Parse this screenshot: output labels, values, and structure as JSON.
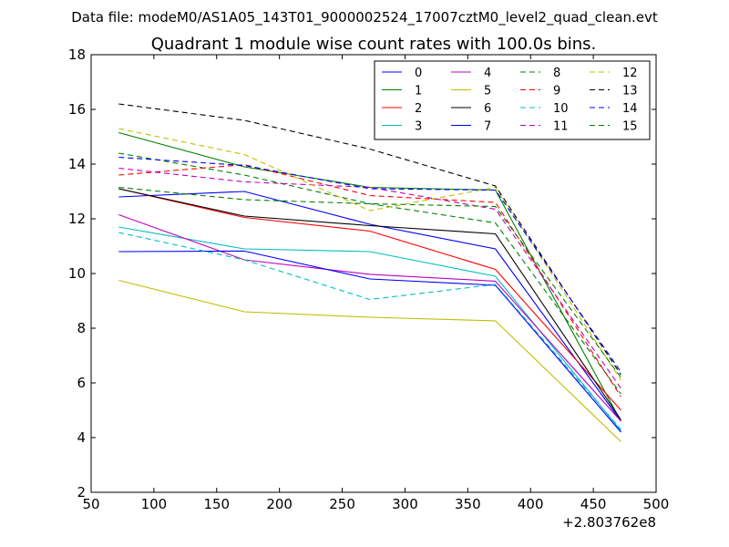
{
  "chart_data": {
    "type": "line",
    "suptitle": "Data file: modeM0/AS1A05_143T01_9000002524_17007cztM0_level2_quad_clean.evt",
    "title": "Quadrant 1 module wise count rates with 100.0s bins.",
    "xlabel": "",
    "ylabel": "",
    "x_offset_label": "+2.803762e8",
    "xlim": [
      50,
      500
    ],
    "ylim": [
      2,
      18
    ],
    "xticks": [
      50,
      100,
      150,
      200,
      250,
      300,
      350,
      400,
      450,
      500
    ],
    "yticks": [
      2,
      4,
      6,
      8,
      10,
      12,
      14,
      16,
      18
    ],
    "x": [
      72,
      172,
      272,
      372,
      472
    ],
    "legend_position": "top-right",
    "series": [
      {
        "name": "0",
        "color": "#0000ff",
        "dash": "solid",
        "values": [
          12.8,
          13.0,
          11.8,
          10.9,
          4.6
        ]
      },
      {
        "name": "1",
        "color": "#008000",
        "dash": "solid",
        "values": [
          15.15,
          13.9,
          13.15,
          13.05,
          4.6
        ]
      },
      {
        "name": "2",
        "color": "#ff0000",
        "dash": "solid",
        "values": [
          13.1,
          12.05,
          11.55,
          10.15,
          5.0
        ]
      },
      {
        "name": "3",
        "color": "#00bfbf",
        "dash": "solid",
        "values": [
          11.7,
          10.9,
          10.8,
          9.9,
          4.25
        ]
      },
      {
        "name": "4",
        "color": "#bf00bf",
        "dash": "solid",
        "values": [
          12.15,
          10.5,
          9.97,
          9.72,
          4.6
        ]
      },
      {
        "name": "5",
        "color": "#bfbf00",
        "dash": "solid",
        "values": [
          9.75,
          8.6,
          8.4,
          8.27,
          3.85
        ]
      },
      {
        "name": "6",
        "color": "#000000",
        "dash": "solid",
        "values": [
          13.1,
          12.1,
          11.75,
          11.45,
          4.65
        ]
      },
      {
        "name": "7",
        "color": "#0000ff",
        "dash": "solid",
        "values": [
          10.8,
          10.82,
          9.8,
          9.57,
          4.2
        ]
      },
      {
        "name": "8",
        "color": "#008000",
        "dash": "dashed",
        "values": [
          14.4,
          13.6,
          12.55,
          11.85,
          5.6
        ]
      },
      {
        "name": "9",
        "color": "#ff0000",
        "dash": "dashed",
        "values": [
          13.6,
          13.98,
          12.85,
          12.6,
          5.5
        ]
      },
      {
        "name": "10",
        "color": "#00bfbf",
        "dash": "dashed",
        "values": [
          11.5,
          10.5,
          9.05,
          9.6,
          4.3
        ]
      },
      {
        "name": "11",
        "color": "#bf00bf",
        "dash": "dashed",
        "values": [
          13.85,
          13.35,
          13.15,
          12.35,
          5.8
        ]
      },
      {
        "name": "12",
        "color": "#bfbf00",
        "dash": "dashed",
        "values": [
          15.3,
          14.35,
          12.3,
          13.15,
          6.1
        ]
      },
      {
        "name": "13",
        "color": "#000000",
        "dash": "dashed",
        "values": [
          16.2,
          15.6,
          14.55,
          13.2,
          6.3
        ]
      },
      {
        "name": "14",
        "color": "#0000ff",
        "dash": "dashed",
        "values": [
          14.25,
          13.95,
          13.1,
          13.05,
          6.4
        ]
      },
      {
        "name": "15",
        "color": "#008000",
        "dash": "dashed",
        "values": [
          13.15,
          12.7,
          12.55,
          12.45,
          6.2
        ]
      }
    ]
  }
}
